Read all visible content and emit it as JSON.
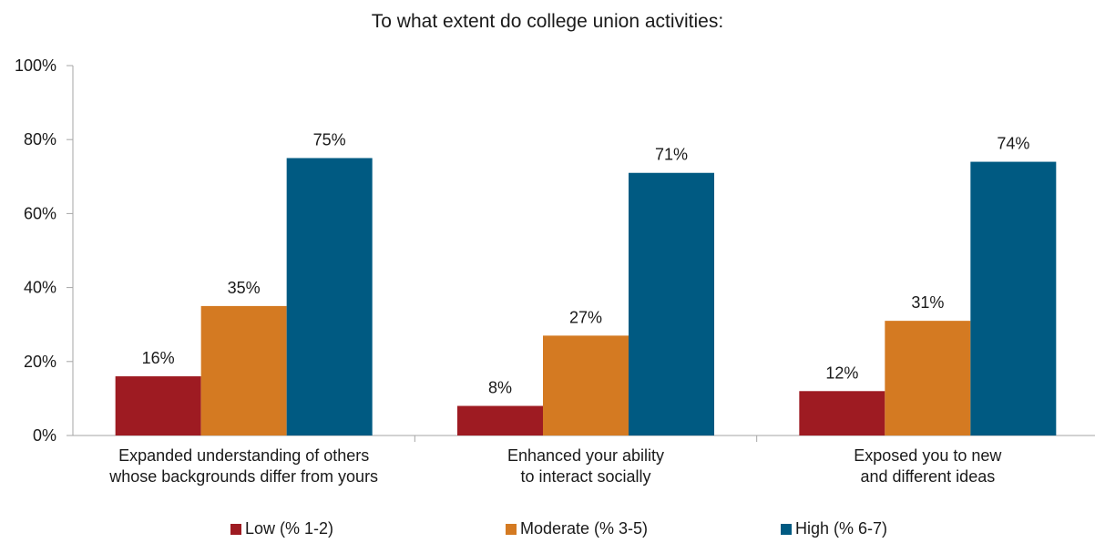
{
  "chart_data": {
    "type": "bar",
    "title": "To what extent do college union activities:",
    "categories": [
      [
        "Expanded understanding of others",
        "whose backgrounds differ from yours"
      ],
      [
        "Enhanced your ability",
        "to interact socially"
      ],
      [
        "Exposed you to new",
        "and different ideas"
      ]
    ],
    "series": [
      {
        "name": "Low (% 1-2)",
        "color": "#9e1b22",
        "values": [
          16,
          8,
          12
        ]
      },
      {
        "name": "Moderate (% 3-5)",
        "color": "#d47a22",
        "values": [
          35,
          27,
          31
        ]
      },
      {
        "name": "High (% 6-7)",
        "color": "#005a82",
        "values": [
          75,
          71,
          74
        ]
      }
    ],
    "ylim": [
      0,
      100
    ],
    "yticks": [
      "0%",
      "20%",
      "40%",
      "60%",
      "80%",
      "100%"
    ],
    "value_suffix": "%",
    "legend_position": "bottom",
    "grid": false
  }
}
